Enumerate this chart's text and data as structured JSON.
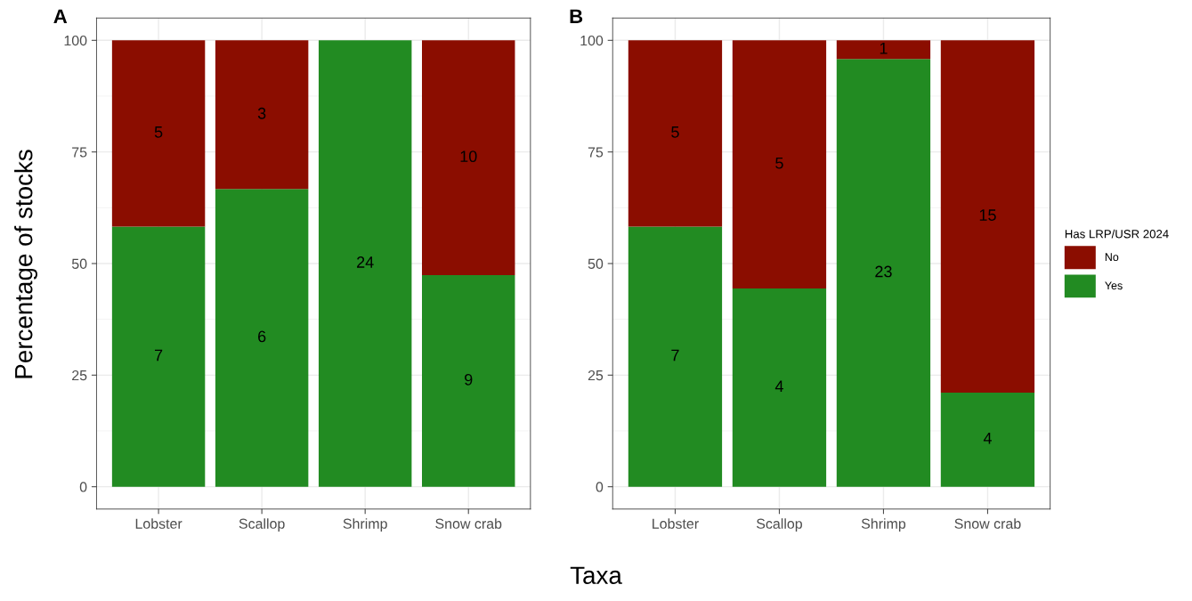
{
  "chart_data": [
    {
      "type": "bar",
      "title": "A",
      "xlabel": "Taxa",
      "ylabel": "Percentage of stocks",
      "categories": [
        "Lobster",
        "Scallop",
        "Shrimp",
        "Snow crab"
      ],
      "stacked": true,
      "ylim": [
        -5,
        105
      ],
      "yticks": [
        0,
        25,
        50,
        75,
        100
      ],
      "grid": true,
      "series": [
        {
          "color": "#228b22",
          "values": [
            58.3,
            66.7,
            100,
            47.4
          ]
        },
        {
          "color": "#8b0d00",
          "values": [
            41.7,
            33.3,
            0,
            52.6
          ]
        }
      ],
      "annotations": [
        "7",
        "6",
        "24",
        "9",
        "5",
        "3",
        "10"
      ]
    },
    {
      "type": "bar",
      "title": "B",
      "categories": [
        "Lobster",
        "Scallop",
        "Shrimp",
        "Snow crab"
      ],
      "stacked": true,
      "ylim": [
        -5,
        105
      ],
      "yticks": [
        0,
        25,
        50,
        75,
        100
      ],
      "grid": true,
      "legend": "right",
      "legend_title": "Has LRP/USR 2024",
      "series": [
        {
          "name": "Yes",
          "color": "#228b22",
          "values": [
            58.3,
            44.4,
            95.8,
            21.1
          ]
        },
        {
          "name": "No",
          "color": "#8b0d00",
          "values": [
            41.7,
            55.6,
            4.2,
            78.9
          ]
        }
      ],
      "annotations": [
        "7",
        "4",
        "23",
        "4",
        "5",
        "5",
        "1",
        "15"
      ]
    }
  ]
}
